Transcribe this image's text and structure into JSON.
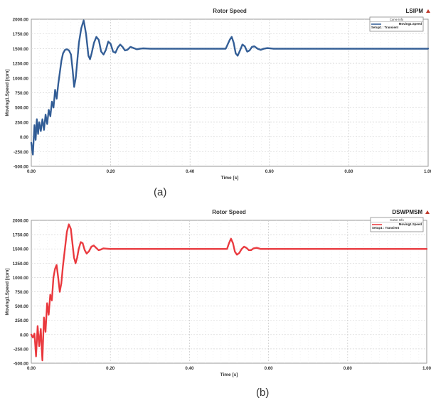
{
  "chart_data": [
    {
      "type": "line",
      "title": "Rotor Speed",
      "corner_label": "LSIPM",
      "caption": "(a)",
      "xlabel": "Time [s]",
      "ylabel": "Moving1.Speed [rpm]",
      "xlim": [
        0,
        1
      ],
      "ylim": [
        -500,
        2000
      ],
      "x_ticks": [
        "0.00",
        "0.20",
        "0.40",
        "0.60",
        "0.80",
        "1.00"
      ],
      "y_ticks": [
        "-500.00",
        "-250.00",
        "0.00",
        "250.00",
        "500.00",
        "750.00",
        "1000.00",
        "1250.00",
        "1500.00",
        "1750.00",
        "2000.00"
      ],
      "grid": true,
      "legend": {
        "placement": "top-right",
        "header": "Curve Info",
        "entries": [
          {
            "name": "Moving1.Speed",
            "sub": "Setup1 : Transient"
          }
        ]
      },
      "color": "#1f4e8c",
      "series": [
        {
          "name": "Moving1.Speed",
          "x": [
            0,
            0.004,
            0.008,
            0.011,
            0.014,
            0.017,
            0.02,
            0.024,
            0.028,
            0.032,
            0.036,
            0.04,
            0.044,
            0.048,
            0.052,
            0.056,
            0.06,
            0.064,
            0.068,
            0.072,
            0.076,
            0.08,
            0.085,
            0.09,
            0.095,
            0.1,
            0.104,
            0.108,
            0.112,
            0.116,
            0.12,
            0.126,
            0.132,
            0.138,
            0.144,
            0.148,
            0.152,
            0.158,
            0.164,
            0.17,
            0.176,
            0.182,
            0.188,
            0.194,
            0.2,
            0.206,
            0.212,
            0.218,
            0.224,
            0.23,
            0.236,
            0.242,
            0.25,
            0.258,
            0.266,
            0.274,
            0.282,
            0.3,
            0.35,
            0.4,
            0.45,
            0.49,
            0.5,
            0.505,
            0.51,
            0.515,
            0.52,
            0.526,
            0.532,
            0.538,
            0.544,
            0.55,
            0.556,
            0.562,
            0.57,
            0.578,
            0.586,
            0.595,
            0.61,
            0.65,
            0.7,
            0.75,
            0.8,
            0.85,
            0.9,
            0.95,
            1.0
          ],
          "y": [
            -100,
            -300,
            200,
            -50,
            300,
            50,
            250,
            100,
            300,
            120,
            380,
            220,
            460,
            350,
            600,
            500,
            800,
            650,
            900,
            1100,
            1300,
            1420,
            1480,
            1490,
            1470,
            1400,
            1150,
            850,
            1000,
            1300,
            1600,
            1850,
            1980,
            1750,
            1380,
            1320,
            1420,
            1600,
            1700,
            1650,
            1450,
            1400,
            1480,
            1620,
            1580,
            1450,
            1430,
            1520,
            1570,
            1530,
            1470,
            1480,
            1530,
            1510,
            1490,
            1500,
            1505,
            1500,
            1500,
            1500,
            1500,
            1500,
            1650,
            1700,
            1600,
            1420,
            1380,
            1470,
            1570,
            1540,
            1450,
            1470,
            1530,
            1540,
            1500,
            1480,
            1500,
            1510,
            1500,
            1500,
            1500,
            1500,
            1500,
            1500,
            1500,
            1500,
            1500
          ]
        }
      ]
    },
    {
      "type": "line",
      "title": "Rotor Speed",
      "corner_label": "DSWPMSM",
      "caption": "(b)",
      "xlabel": "Time [s]",
      "ylabel": "Moving1.Speed [rpm]",
      "xlim": [
        0,
        1
      ],
      "ylim": [
        -500,
        2000
      ],
      "x_ticks": [
        "0.00",
        "0.20",
        "0.40",
        "0.60",
        "0.80",
        "1.00"
      ],
      "y_ticks": [
        "-500.00",
        "-250.00",
        "0.00",
        "250.00",
        "500.00",
        "750.00",
        "1000.00",
        "1250.00",
        "1500.00",
        "1750.00",
        "2000.00"
      ],
      "grid": true,
      "legend": {
        "placement": "top-right",
        "header": "Curve Info",
        "entries": [
          {
            "name": "Moving1.Speed",
            "sub": "Setup1 : Transient"
          }
        ]
      },
      "color": "#e8262b",
      "series": [
        {
          "name": "Moving1.Speed",
          "x": [
            0,
            0.004,
            0.008,
            0.012,
            0.016,
            0.02,
            0.024,
            0.028,
            0.032,
            0.036,
            0.04,
            0.044,
            0.048,
            0.052,
            0.056,
            0.06,
            0.064,
            0.068,
            0.072,
            0.076,
            0.08,
            0.085,
            0.09,
            0.095,
            0.1,
            0.104,
            0.108,
            0.112,
            0.116,
            0.12,
            0.125,
            0.13,
            0.135,
            0.14,
            0.146,
            0.152,
            0.158,
            0.164,
            0.17,
            0.176,
            0.182,
            0.19,
            0.2,
            0.21,
            0.22,
            0.25,
            0.3,
            0.35,
            0.4,
            0.45,
            0.495,
            0.5,
            0.505,
            0.51,
            0.515,
            0.52,
            0.526,
            0.532,
            0.538,
            0.544,
            0.55,
            0.556,
            0.562,
            0.57,
            0.58,
            0.6,
            0.65,
            0.7,
            0.75,
            0.8,
            0.85,
            0.9,
            0.95,
            1.0
          ],
          "y": [
            0,
            -50,
            20,
            -380,
            150,
            -200,
            100,
            -450,
            300,
            50,
            550,
            350,
            700,
            600,
            1000,
            1150,
            1220,
            1000,
            750,
            900,
            1200,
            1500,
            1800,
            1930,
            1850,
            1600,
            1350,
            1250,
            1350,
            1500,
            1620,
            1600,
            1480,
            1420,
            1460,
            1540,
            1560,
            1520,
            1480,
            1490,
            1510,
            1505,
            1500,
            1500,
            1500,
            1500,
            1500,
            1500,
            1500,
            1500,
            1500,
            1600,
            1680,
            1600,
            1450,
            1400,
            1430,
            1500,
            1540,
            1520,
            1480,
            1480,
            1510,
            1520,
            1500,
            1500,
            1500,
            1500,
            1500,
            1500,
            1500,
            1500,
            1500,
            1500
          ]
        }
      ]
    }
  ]
}
